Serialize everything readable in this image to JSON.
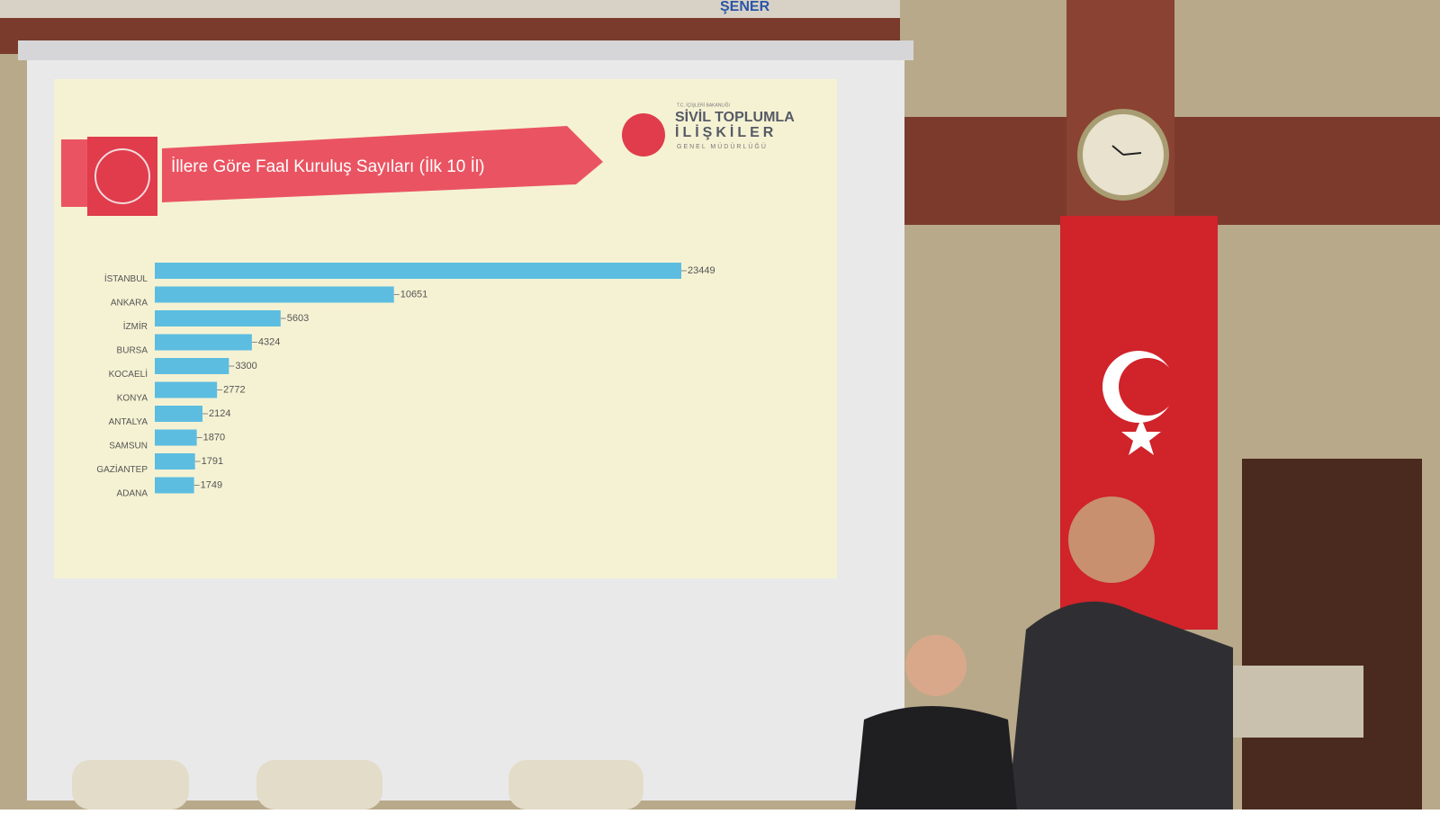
{
  "chart_data": {
    "type": "bar",
    "orientation": "horizontal",
    "title": "İllere Göre Faal Kuruluş Sayıları (İlk 10 İl)",
    "categories": [
      "İSTANBUL",
      "ANKARA",
      "İZMİR",
      "BURSA",
      "KOCAELİ",
      "KONYA",
      "ANTALYA",
      "SAMSUN",
      "GAZİANTEP",
      "ADANA"
    ],
    "values": [
      23449,
      10651,
      5603,
      4324,
      3300,
      2772,
      2124,
      1870,
      1791,
      1749
    ],
    "color": "#5cbde0",
    "logo": {
      "ministry": "T.C. İÇİŞLERİ BAKANLIĞI",
      "line1": "SİVİL TOPLUMLA",
      "line2": "İLİŞKİLER",
      "line3": "GENEL MÜDÜRLÜĞÜ"
    }
  },
  "scene": {
    "banner": "ŞENER"
  }
}
